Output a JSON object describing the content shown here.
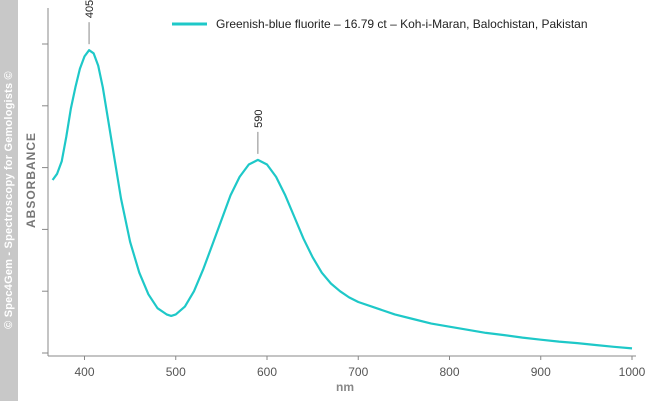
{
  "watermark": "© Spec4Gem - Spectroscopy for Gemologists ©",
  "chart_data": {
    "type": "line",
    "title": "",
    "xlabel": "nm",
    "ylabel": "ABSORBANCE",
    "xlim": [
      360,
      1000
    ],
    "ylim": [
      0,
      1
    ],
    "x_ticks": [
      400,
      500,
      600,
      700,
      800,
      900,
      1000
    ],
    "grid": false,
    "legend": "top-right",
    "series": [
      {
        "name": "Greenish-blue fluorite  – 16.79 ct – Koh-i-Maran, Balochistan, Pakistan",
        "color": "#1ec8c8",
        "x": [
          365,
          370,
          375,
          380,
          385,
          390,
          395,
          400,
          405,
          410,
          415,
          420,
          430,
          440,
          450,
          460,
          470,
          480,
          490,
          495,
          500,
          510,
          520,
          530,
          540,
          550,
          560,
          570,
          580,
          590,
          600,
          610,
          620,
          630,
          640,
          650,
          660,
          670,
          680,
          690,
          700,
          720,
          740,
          760,
          780,
          800,
          820,
          840,
          860,
          880,
          900,
          920,
          940,
          960,
          980,
          1000
        ],
        "y": [
          0.56,
          0.58,
          0.62,
          0.7,
          0.79,
          0.86,
          0.92,
          0.96,
          0.98,
          0.97,
          0.93,
          0.86,
          0.68,
          0.5,
          0.36,
          0.26,
          0.19,
          0.145,
          0.125,
          0.12,
          0.125,
          0.15,
          0.2,
          0.27,
          0.35,
          0.43,
          0.51,
          0.57,
          0.61,
          0.625,
          0.61,
          0.57,
          0.51,
          0.44,
          0.37,
          0.31,
          0.26,
          0.225,
          0.2,
          0.18,
          0.165,
          0.145,
          0.125,
          0.11,
          0.095,
          0.085,
          0.075,
          0.065,
          0.058,
          0.05,
          0.043,
          0.037,
          0.032,
          0.026,
          0.02,
          0.015
        ]
      }
    ],
    "annotations": [
      {
        "x": 405,
        "label": "405"
      },
      {
        "x": 590,
        "label": "590"
      }
    ]
  }
}
